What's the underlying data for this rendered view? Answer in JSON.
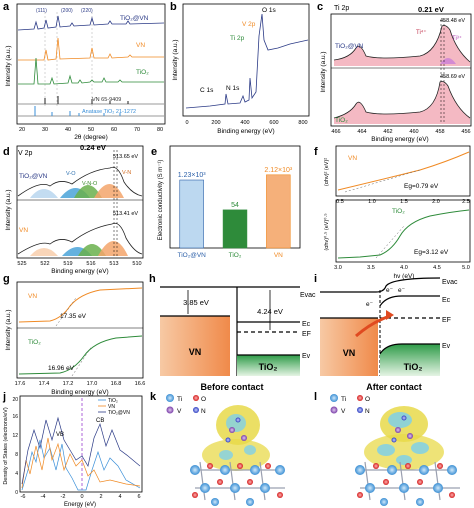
{
  "panels": {
    "a": {
      "letter": "a",
      "ylabel": "Intensity (a.u.)",
      "xlabel": "2θ (degree)",
      "ticks": [
        "20",
        "30",
        "40",
        "50",
        "60",
        "70",
        "80"
      ],
      "peak_labels": [
        "(111)",
        "(200)",
        "(220)"
      ],
      "labels": [
        "TiO₂@VN",
        "VN",
        "TiO₂",
        "VN 65-9409",
        "Anatase TiO₂ 21-1272"
      ],
      "colors": [
        "#2b3a86",
        "#f08a24",
        "#2e8b3a",
        "#333333",
        "#3a8fd8"
      ]
    },
    "b": {
      "letter": "b",
      "ylabel": "Intensity (a.u.)",
      "xlabel": "Binding energy (eV)",
      "ticks": [
        "0",
        "200",
        "400",
        "600",
        "800"
      ],
      "labels": [
        "O 1s",
        "V 2p",
        "Ti 2p",
        "C 1s",
        "N 1s"
      ]
    },
    "c": {
      "letter": "c",
      "title": "Ti 2p",
      "ylabel": "Intensity (a.u.)",
      "xlabel": "Binding energy (eV)",
      "ticks": [
        "466",
        "464",
        "462",
        "460",
        "458",
        "456"
      ],
      "top_label": "TiO₂@VN",
      "bottom_label": "TiO₂",
      "shift": "0.21 eV",
      "peak_top": "458.48 eV",
      "peak_bottom": "458.69 eV",
      "ti4": "Ti⁴⁺",
      "ti3": "Ti³⁺"
    },
    "d": {
      "letter": "d",
      "title": "V 2p",
      "ylabel": "Intensity (a.u.)",
      "xlabel": "Binding energy (eV)",
      "ticks": [
        "525",
        "522",
        "519",
        "516",
        "513",
        "510"
      ],
      "shift": "0.24 eV",
      "peak_top": "513.65 eV",
      "peak_bottom": "513.41 eV",
      "top_label": "TiO₂@VN",
      "bottom_label": "VN",
      "components": [
        "V-O",
        "V-N-O",
        "V-N"
      ]
    },
    "e": {
      "letter": "e",
      "ylabel": "Electronic conductivity (S m⁻¹)",
      "chart_data": {
        "type": "bar",
        "categories": [
          "TiO₂@VN",
          "TiO₂",
          "VN"
        ],
        "values": [
          1230,
          54,
          2120
        ],
        "value_labels": [
          "1.23×10³",
          "54",
          "2.12×10³"
        ],
        "colors": [
          "#bcd8f0",
          "#2e8b3a",
          "#f5b07a"
        ],
        "label_colors": [
          "#2b5fa8",
          "#2e8b3a",
          "#f08a24"
        ]
      }
    },
    "f": {
      "letter": "f",
      "xlabel": "hν (eV)",
      "ticks": [
        "0.5",
        "1.0",
        "1.5",
        "2.0",
        "2.5",
        "3.0",
        "3.5",
        "4.0",
        "4.5",
        "5.0"
      ],
      "top_label": "VN",
      "top_ylabel": "(αhν)² (eV)²",
      "top_eg": "Eg=0.79 eV",
      "bottom_label": "TiO₂",
      "bottom_ylabel": "(αhν)⁰·⁵ (eV)⁰·⁵",
      "bottom_eg": "Eg=3.12 eV"
    },
    "g": {
      "letter": "g",
      "ylabel": "Intensity (a.u.)",
      "xlabel": "Binding energy (eV)",
      "ticks": [
        "17.6",
        "17.4",
        "17.2",
        "17.0",
        "16.8",
        "16.6"
      ],
      "top_label": "VN",
      "top_value": "17.35 eV",
      "bottom_label": "TiO₂",
      "bottom_value": "16.96 eV"
    },
    "h": {
      "letter": "h",
      "caption": "Before contact",
      "left_label": "VN",
      "right_label": "TiO₂",
      "evac": "Evac",
      "ef": "EF",
      "ec": "Ec",
      "ev": "Ev",
      "phi_vn": "3.85 eV",
      "phi_tio2": "4.24 eV"
    },
    "i": {
      "letter": "i",
      "caption": "After contact",
      "left_label": "VN",
      "right_label": "TiO₂",
      "evac": "Evac",
      "ec": "Ec",
      "ef": "EF",
      "ev": "Ev",
      "electron": "e⁻"
    },
    "j": {
      "letter": "j",
      "ylabel": "Density of States (electrons/eV)",
      "xlabel": "Energy (eV)",
      "ticks": [
        "-6",
        "-4",
        "-2",
        "0",
        "2",
        "4",
        "6"
      ],
      "yticks": [
        "0",
        "2",
        "4",
        "6",
        "8",
        "10",
        "12",
        "14",
        "16",
        "18",
        "20"
      ],
      "legend": [
        "TiO₂",
        "VN",
        "TiO₂@VN"
      ],
      "vb": "VB",
      "cb": "CB"
    },
    "k": {
      "letter": "k",
      "legend": [
        "Ti",
        "O",
        "V",
        "N"
      ]
    },
    "l": {
      "letter": "l",
      "legend": [
        "Ti",
        "O",
        "V",
        "N"
      ]
    }
  }
}
